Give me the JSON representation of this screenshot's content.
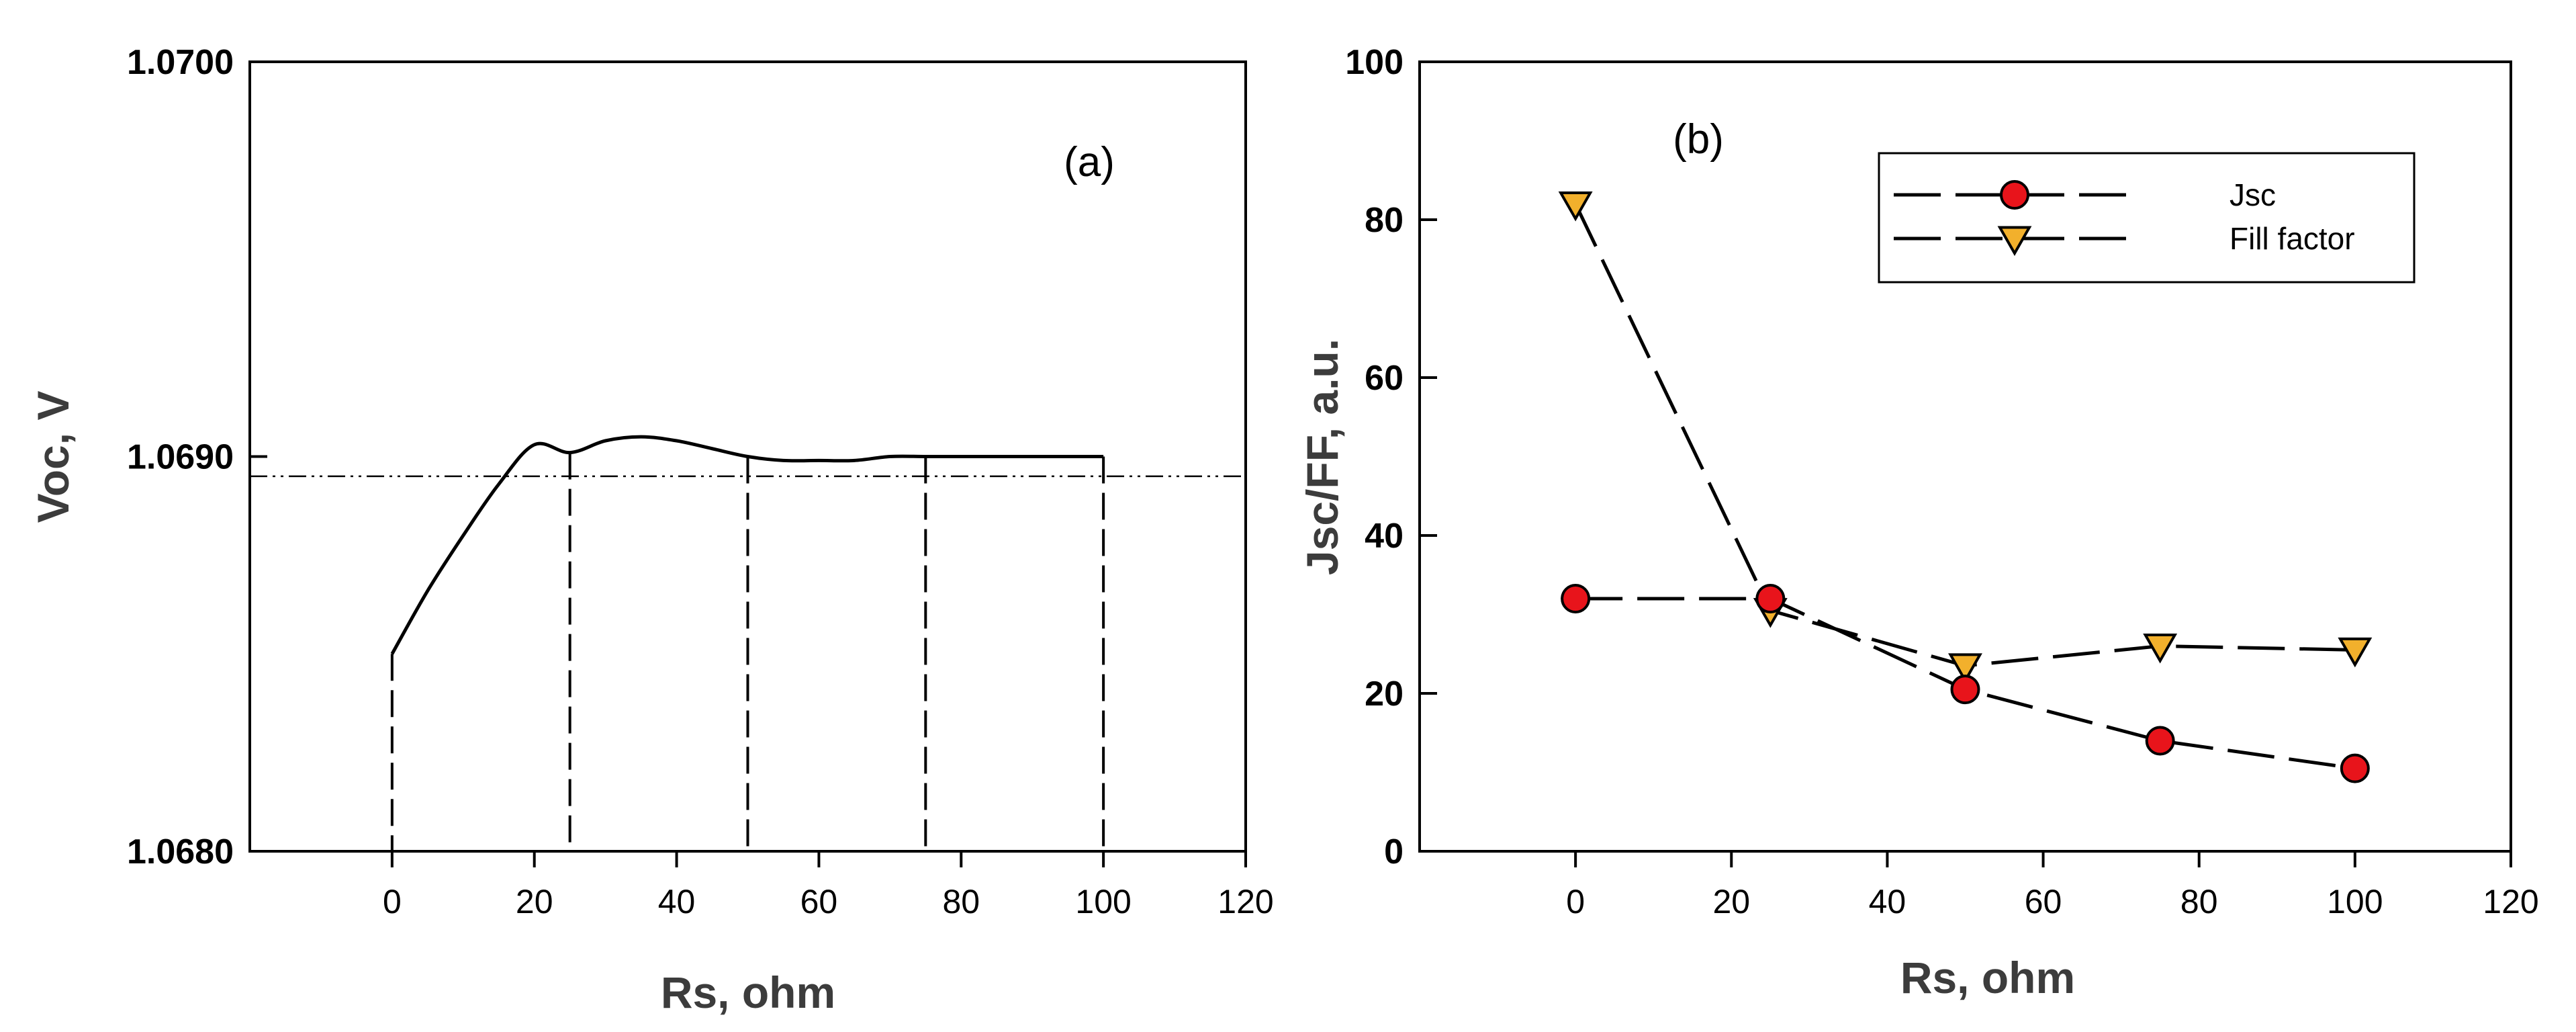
{
  "chart_data": [
    {
      "panel": "a",
      "type": "line",
      "panel_label": "(a)",
      "xlabel": "Rs, ohm",
      "ylabel": "Voc, V",
      "xlim": [
        -20,
        120
      ],
      "ylim": [
        1.068,
        1.07
      ],
      "xticks": [
        0,
        20,
        40,
        60,
        80,
        100,
        120
      ],
      "yticks": [
        1.068,
        1.069,
        1.07
      ],
      "ytick_labels": [
        "1.0680",
        "1.0690",
        "1.0700"
      ],
      "curve": {
        "x": [
          0,
          5,
          10,
          15,
          20,
          25,
          30,
          35,
          40,
          45,
          50,
          55,
          60,
          65,
          70,
          75,
          80,
          85,
          90,
          95,
          100
        ],
        "y": [
          1.0685,
          1.06866,
          1.0688,
          1.06893,
          1.06903,
          1.06901,
          1.06904,
          1.06905,
          1.06904,
          1.06902,
          1.069,
          1.06899,
          1.06899,
          1.06899,
          1.069,
          1.069,
          1.069,
          1.069,
          1.069,
          1.069,
          1.069
        ]
      },
      "reference_line_y": 1.06895,
      "drop_lines_x": [
        0,
        25,
        50,
        75,
        100
      ]
    },
    {
      "panel": "b",
      "type": "line",
      "panel_label": "(b)",
      "xlabel": "Rs, ohm",
      "ylabel": "Jsc/FF, a.u.",
      "xlim": [
        -20,
        120
      ],
      "ylim": [
        0,
        100
      ],
      "xticks": [
        0,
        20,
        40,
        60,
        80,
        100,
        120
      ],
      "yticks": [
        0,
        20,
        40,
        60,
        80,
        100
      ],
      "x": [
        0,
        25,
        50,
        75,
        100
      ],
      "series": [
        {
          "name": "Jsc",
          "marker": "circle",
          "color": "#e8141b",
          "values": [
            32,
            32,
            20.5,
            14,
            10.5
          ]
        },
        {
          "name": "Fill factor",
          "marker": "triangle-down",
          "color": "#f2b02c",
          "values": [
            82,
            30.5,
            23.5,
            26,
            25.5
          ]
        }
      ],
      "legend": "top-right"
    }
  ]
}
